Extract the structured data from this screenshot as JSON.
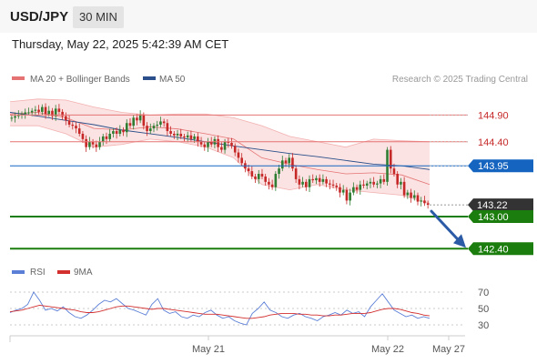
{
  "header": {
    "pair": "USD/JPY",
    "timeframe": "30 MIN",
    "datetime": "Thursday, May 22, 2025 5:42:39 AM CET"
  },
  "legend": {
    "bb_label": "MA 20 + Bollinger Bands",
    "ma50_label": "MA 50",
    "credit": "Research © 2025 Trading Central"
  },
  "colors": {
    "bb": "#e57373",
    "bb_fill": "#fbe3e3",
    "ma50": "#2b4f8a",
    "up": "#2e7d32",
    "down": "#c62828",
    "level_red": "#e57373",
    "level_blue": "#1565c0",
    "level_green": "#1b7d0d",
    "arrow": "#2b5aa6"
  },
  "chart_data": [
    {
      "type": "candlestick",
      "ylim": [
        142.2,
        145.35
      ],
      "levels": [
        {
          "value": 144.9,
          "label": "144.90",
          "style": "red"
        },
        {
          "value": 144.4,
          "label": "144.40",
          "style": "red"
        },
        {
          "value": 143.95,
          "label": "143.95",
          "style": "blue"
        },
        {
          "value": 143.22,
          "label": "143.22",
          "style": "current"
        },
        {
          "value": 143.0,
          "label": "143.00",
          "style": "green"
        },
        {
          "value": 142.4,
          "label": "142.40",
          "style": "green"
        }
      ],
      "arrow": {
        "from": 143.1,
        "to": 142.4
      },
      "close_series": [
        144.85,
        144.88,
        144.9,
        144.92,
        144.95,
        144.95,
        144.98,
        145.0,
        144.96,
        145.05,
        144.92,
        144.98,
        144.88,
        145.02,
        144.96,
        144.88,
        144.8,
        144.72,
        144.7,
        144.65,
        144.55,
        144.45,
        144.3,
        144.4,
        144.35,
        144.3,
        144.4,
        144.5,
        144.45,
        144.55,
        144.6,
        144.55,
        144.62,
        144.58,
        144.75,
        144.7,
        144.85,
        144.8,
        144.9,
        144.7,
        144.6,
        144.65,
        144.7,
        144.72,
        144.78,
        144.75,
        144.6,
        144.55,
        144.52,
        144.55,
        144.5,
        144.48,
        144.52,
        144.45,
        144.5,
        144.4,
        144.35,
        144.3,
        144.4,
        144.35,
        144.45,
        144.3,
        144.25,
        144.4,
        144.38,
        144.32,
        144.2,
        144.1,
        144.0,
        143.9,
        143.85,
        143.75,
        143.7,
        143.8,
        143.75,
        143.65,
        143.6,
        143.55,
        143.8,
        143.9,
        144.05,
        144.0,
        144.1,
        143.9,
        143.7,
        143.6,
        143.65,
        143.55,
        143.7,
        143.68,
        143.72,
        143.65,
        143.7,
        143.62,
        143.6,
        143.58,
        143.55,
        143.45,
        143.5,
        143.3,
        143.45,
        143.55,
        143.5,
        143.6,
        143.58,
        143.62,
        143.65,
        143.6,
        143.62,
        143.7,
        143.65,
        144.25,
        143.9,
        143.8,
        143.6,
        143.65,
        143.4,
        143.45,
        143.35,
        143.4,
        143.28,
        143.3,
        143.25,
        143.22
      ],
      "ma50": [
        144.95,
        144.88,
        144.8,
        144.72,
        144.62,
        144.55,
        144.48,
        144.4,
        144.32,
        144.25,
        144.18,
        144.12,
        144.05,
        143.98,
        143.95,
        143.88
      ],
      "bb_upper": [
        145.15,
        145.2,
        145.18,
        145.05,
        144.95,
        144.9,
        144.92,
        144.92,
        144.85,
        144.7,
        144.5,
        144.4,
        144.3,
        144.45,
        144.42,
        144.4
      ],
      "bb_lower": [
        144.7,
        144.7,
        144.55,
        144.3,
        144.35,
        144.45,
        144.4,
        144.3,
        144.1,
        143.6,
        143.5,
        143.6,
        143.5,
        143.45,
        143.4,
        143.25
      ],
      "bb_mid": [
        144.92,
        144.95,
        144.85,
        144.65,
        144.62,
        144.68,
        144.64,
        144.55,
        144.45,
        144.1,
        143.98,
        143.88,
        143.8,
        143.82,
        143.78,
        143.6
      ]
    },
    {
      "type": "line",
      "legend": [
        "RSI",
        "9MA"
      ],
      "ylim": [
        20,
        80
      ],
      "yticks": [
        30,
        50,
        70
      ],
      "rsi_series": [
        45,
        48,
        50,
        55,
        70,
        60,
        48,
        50,
        47,
        52,
        45,
        40,
        38,
        42,
        48,
        55,
        60,
        58,
        62,
        56,
        50,
        48,
        45,
        42,
        55,
        62,
        48,
        44,
        46,
        40,
        38,
        42,
        40,
        45,
        48,
        42,
        38,
        40,
        35,
        32,
        30,
        44,
        50,
        58,
        48,
        45,
        40,
        38,
        42,
        44,
        40,
        38,
        35,
        40,
        42,
        45,
        42,
        48,
        44,
        46,
        40,
        52,
        60,
        68,
        58,
        48,
        44,
        40,
        42,
        38,
        40,
        38
      ],
      "ma9_series": [
        46,
        47,
        48,
        50,
        52,
        54,
        53,
        52,
        51,
        50,
        49,
        48,
        46,
        45,
        45,
        46,
        48,
        50,
        52,
        53,
        53,
        52,
        51,
        50,
        49,
        50,
        50,
        49,
        48,
        47,
        46,
        45,
        44,
        43,
        43,
        43,
        42,
        41,
        40,
        39,
        38,
        38,
        39,
        40,
        42,
        43,
        44,
        44,
        44,
        43,
        43,
        42,
        42,
        41,
        41,
        42,
        42,
        43,
        44,
        44,
        44,
        45,
        47,
        49,
        50,
        50,
        49,
        47,
        45,
        44,
        42,
        41
      ]
    }
  ],
  "xaxis": {
    "labels": [
      "May 21",
      "May 22",
      "May 27"
    ]
  }
}
